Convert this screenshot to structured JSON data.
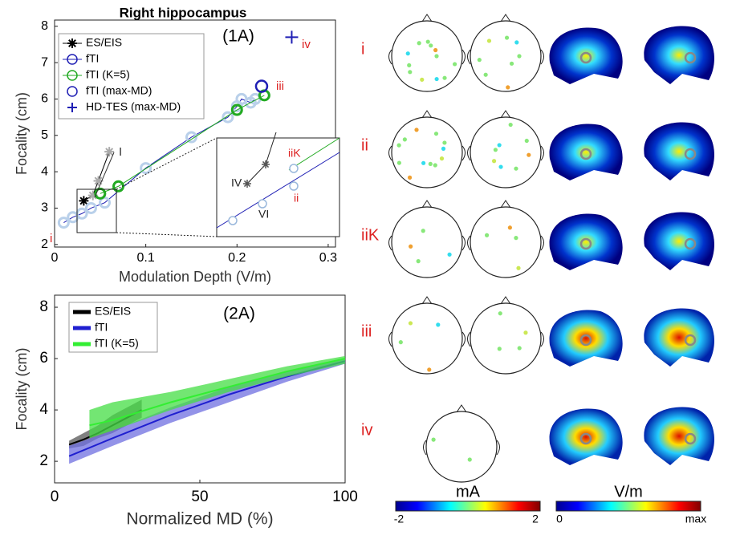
{
  "chart_data": [
    {
      "type": "line",
      "title": "Right hippocampus",
      "annotation": "(1A)",
      "xlabel": "Modulation Depth (V/m)",
      "ylabel": "Focality (cm)",
      "xlim": [
        0,
        0.308
      ],
      "xticks": [
        0,
        0.1,
        0.2,
        0.3
      ],
      "ylim": [
        1.93,
        8.17
      ],
      "yticks": [
        2,
        3,
        4,
        5,
        6,
        7,
        8
      ],
      "series": [
        {
          "name": "ES/EIS",
          "color": "#000000",
          "marker": "star",
          "x": [
            0.032,
            0.042,
            0.048,
            0.06
          ],
          "y": [
            3.2,
            3.35,
            3.75,
            4.55
          ]
        },
        {
          "name": "fTI",
          "color": "#1f1fb4",
          "marker": "circle",
          "marker_color": "#b9d0ea",
          "x": [
            0.01,
            0.02,
            0.03,
            0.04,
            0.055,
            0.1,
            0.15,
            0.19,
            0.2,
            0.205,
            0.215,
            0.22
          ],
          "y": [
            2.6,
            2.75,
            2.85,
            3.0,
            3.15,
            4.1,
            4.95,
            5.5,
            5.8,
            6.0,
            5.9,
            6.0
          ]
        },
        {
          "name": "fTI (K=5)",
          "color": "#22aa22",
          "marker": "circle",
          "x": [
            0.05,
            0.07,
            0.2,
            0.23
          ],
          "y": [
            3.4,
            3.6,
            5.7,
            6.1
          ]
        },
        {
          "name": "fTI (max-MD)",
          "color": "#1f1fb4",
          "marker": "circle",
          "x": [
            0.227
          ],
          "y": [
            6.35
          ]
        },
        {
          "name": "HD-TES (max-MD)",
          "color": "#1f1fb4",
          "marker": "plus",
          "x": [
            0.26
          ],
          "y": [
            7.7
          ]
        }
      ],
      "annotations": [
        "i",
        "I",
        "iii",
        "iv"
      ],
      "inset_annotations": [
        "IV",
        "iiK",
        "ii",
        "VI"
      ]
    },
    {
      "type": "band",
      "annotation": "(2A)",
      "xlabel": "Normalized MD (%)",
      "ylabel": "Focality (cm)",
      "xlim": [
        0,
        100
      ],
      "xticks": [
        0,
        50,
        100
      ],
      "ylim": [
        1.16,
        8.47
      ],
      "yticks": [
        2,
        4,
        6,
        8
      ],
      "series": [
        {
          "name": "ES/EIS",
          "color": "#000000",
          "band_color": "#555555",
          "x": [
            5,
            10,
            15,
            20,
            25,
            30
          ],
          "y": [
            2.65,
            2.85,
            3.1,
            3.4,
            3.7,
            4.0
          ],
          "lower": [
            2.5,
            2.6,
            2.9,
            3.1,
            3.4,
            3.7
          ],
          "upper": [
            2.8,
            3.1,
            3.4,
            3.8,
            4.1,
            4.4
          ]
        },
        {
          "name": "fTI",
          "color": "#1f1fd0",
          "band_color": "#6f6fe0",
          "x": [
            5,
            20,
            40,
            60,
            80,
            100
          ],
          "y": [
            2.2,
            2.9,
            3.8,
            4.6,
            5.3,
            5.9
          ],
          "lower": [
            1.9,
            2.6,
            3.5,
            4.3,
            5.1,
            5.8
          ],
          "upper": [
            2.6,
            3.2,
            4.1,
            4.9,
            5.5,
            6.0
          ]
        },
        {
          "name": "fTI (K=5)",
          "color": "#33ee33",
          "band_color": "#44dd44",
          "x": [
            12,
            20,
            40,
            60,
            80,
            100
          ],
          "y": [
            3.4,
            3.6,
            4.3,
            4.9,
            5.5,
            6.0
          ],
          "lower": [
            2.9,
            3.2,
            4.0,
            4.7,
            5.3,
            5.8
          ],
          "upper": [
            4.0,
            4.3,
            4.7,
            5.2,
            5.7,
            6.1
          ]
        }
      ]
    }
  ],
  "montages": {
    "rows": [
      "i",
      "ii",
      "iiK",
      "iii",
      "iv"
    ],
    "colorbars": [
      {
        "label": "mA",
        "ticks": [
          "-2",
          "2"
        ]
      },
      {
        "label": "V/m",
        "ticks": [
          "0",
          "max"
        ]
      }
    ]
  }
}
